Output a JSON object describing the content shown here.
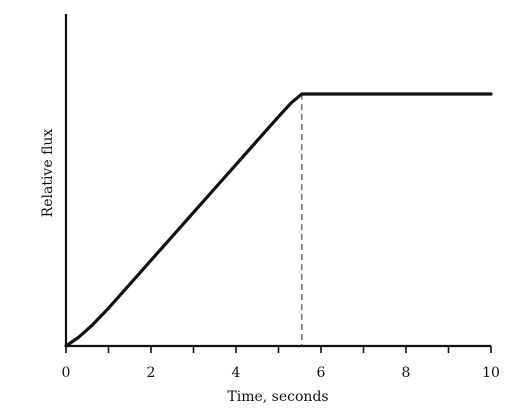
{
  "chart_data": {
    "type": "line",
    "title": "",
    "xlabel": "Time, seconds",
    "ylabel": "Relative flux",
    "xlim": [
      0,
      10
    ],
    "ylim": [
      0,
      1
    ],
    "x_ticks": [
      0,
      1,
      2,
      3,
      4,
      5,
      6,
      7,
      8,
      9,
      10
    ],
    "x_tick_labels": [
      "0",
      "",
      "2",
      "",
      "4",
      "",
      "6",
      "",
      "8",
      "",
      "10"
    ],
    "y_ticks_labeled": false,
    "grid": false,
    "series": [
      {
        "x": [
          0,
          0.3,
          0.6,
          1,
          1.5,
          2,
          2.5,
          3,
          3.5,
          4,
          4.5,
          5,
          5.3,
          5.55,
          6,
          7,
          8,
          9,
          10
        ],
        "y": [
          0,
          0.035,
          0.08,
          0.15,
          0.245,
          0.34,
          0.435,
          0.53,
          0.625,
          0.72,
          0.815,
          0.91,
          0.965,
          1,
          1,
          1,
          1,
          1,
          1
        ]
      }
    ],
    "annotations": [
      {
        "type": "vertical-dashed-line",
        "x": 5.55,
        "y_from": 0,
        "y_to": 1
      }
    ],
    "colors": {
      "line": "#111111",
      "axis": "#111111",
      "dashed": "#555555"
    }
  }
}
